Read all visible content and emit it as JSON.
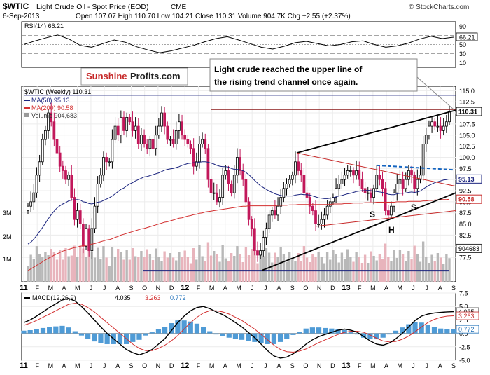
{
  "header": {
    "symbol": "$WTIC",
    "name": "Light Crude Oil - Spot Price (EOD)",
    "exchange": "CME",
    "date": "6-Sep-2013",
    "ohlc": "Open 107.07  High 110.70  Low 104.21  Close 110.31  Volume 904.7K  Chg +2.55 (+2.37%)",
    "watermark": "© StockCharts.com"
  },
  "brand": {
    "sunshine": "Sunshine",
    "profits": "Profits.com"
  },
  "annotation": "Light crude reached the upper line of the rising trend channel once again.",
  "pattern_labels": {
    "left_shoulder": "S",
    "head": "H",
    "right_shoulder": "S"
  },
  "chart_data": [
    {
      "type": "line",
      "title": "RSI(14) 66.21",
      "ylim": [
        0,
        100
      ],
      "y_ticks": [
        "90",
        "66.21",
        "50",
        "30",
        "10"
      ],
      "levels": [
        70,
        50,
        30
      ],
      "last_value_label": "66.21",
      "values": [
        50,
        58,
        65,
        71,
        62,
        48,
        44,
        52,
        60,
        55,
        45,
        38,
        32,
        36,
        42,
        48,
        56,
        63,
        67,
        60,
        52,
        44,
        40,
        46,
        54,
        57,
        52,
        47,
        50,
        56,
        58,
        50,
        44,
        47,
        53,
        62,
        68,
        63,
        66.21
      ]
    },
    {
      "type": "candlestick",
      "title": "$WTIC (Weekly) 110.31",
      "ylim": [
        72,
        116
      ],
      "y_ticks": [
        "115.0",
        "112.5",
        "110.0",
        "107.5",
        "105.0",
        "102.5",
        "100.0",
        "97.5",
        "95.0",
        "92.5",
        "90.0",
        "87.5",
        "85.0",
        "82.5",
        "80.0",
        "77.5"
      ],
      "x_labels": [
        "11",
        "F",
        "M",
        "A",
        "M",
        "J",
        "J",
        "A",
        "S",
        "O",
        "N",
        "D",
        "12",
        "F",
        "M",
        "A",
        "M",
        "J",
        "J",
        "A",
        "S",
        "O",
        "N",
        "D",
        "13",
        "F",
        "M",
        "A",
        "M",
        "J",
        "J",
        "A",
        "S"
      ],
      "legend": {
        "ma50": "MA(50) 95.13",
        "ma200": "MA(200) 90.58",
        "volume": "Volume 904,683"
      },
      "price_tags": {
        "close": "110.31",
        "ma50": "95.13",
        "ma200": "90.58",
        "volume": "904683"
      },
      "volume_axis": [
        "3M",
        "2M",
        "1M"
      ],
      "closes": [
        89,
        90,
        92,
        96,
        99,
        104,
        106,
        110,
        108,
        104,
        101,
        98,
        97,
        95,
        96,
        91,
        86,
        88,
        85,
        80,
        84,
        79,
        84,
        89,
        94,
        96,
        100,
        99,
        99,
        104,
        107,
        105,
        109,
        106,
        109,
        108,
        106,
        107,
        103,
        105,
        103,
        102,
        104,
        102,
        105,
        107,
        110,
        107,
        104,
        104,
        103,
        106,
        108,
        105,
        104,
        103,
        102,
        98,
        99,
        103,
        104,
        102,
        95,
        92,
        92,
        90,
        91,
        96,
        97,
        94,
        92,
        96,
        100,
        97,
        95,
        90,
        86,
        84,
        79,
        78,
        79,
        82,
        84,
        87,
        88,
        87,
        89,
        91,
        93,
        94,
        95,
        96,
        99,
        97,
        96,
        92,
        91,
        89,
        88,
        85,
        85,
        86,
        87,
        89,
        90,
        91,
        93,
        94,
        95,
        96,
        97,
        97,
        96,
        97,
        95,
        93,
        92,
        92,
        91,
        93,
        96,
        95,
        93,
        88,
        87,
        89,
        92,
        94,
        95,
        93,
        95,
        97,
        96,
        93,
        95,
        96,
        103,
        105,
        107,
        108,
        107,
        107,
        106,
        107,
        108,
        110.31
      ],
      "ma50": [
        80.5,
        80.9,
        81.6,
        82.4,
        83.3,
        84.2,
        85.2,
        86.2,
        87.1,
        87.9,
        88.6,
        89.1,
        89.5,
        89.8,
        90.2,
        90.4,
        90.4,
        90.5,
        90.4,
        90.0,
        89.9,
        89.6,
        89.5,
        89.7,
        89.9,
        90.0,
        90.3,
        90.6,
        90.9,
        91.3,
        91.8,
        92.3,
        92.8,
        93.1,
        93.6,
        94.0,
        94.3,
        94.7,
        95.0,
        95.3,
        95.6,
        95.7,
        95.9,
        96.1,
        96.3,
        96.5,
        96.8,
        97.1,
        97.3,
        97.4,
        97.5,
        97.7,
        97.9,
        98.2,
        98.4,
        98.6,
        98.7,
        98.8,
        98.8,
        98.9,
        99.0,
        99.0,
        98.9,
        98.7,
        98.5,
        98.2,
        98.0,
        97.9,
        97.9,
        97.8,
        97.5,
        97.3,
        97.3,
        97.2,
        97.0,
        96.6,
        96.1,
        95.5,
        94.8,
        94.2,
        93.6,
        93.2,
        92.8,
        92.4,
        92.1,
        91.8,
        91.6,
        91.4,
        91.3,
        91.3,
        91.3,
        91.3,
        91.5,
        91.6,
        91.7,
        91.6,
        91.6,
        91.5,
        91.3,
        91.1,
        90.9,
        90.8,
        90.7,
        90.7,
        90.8,
        90.9,
        91.1,
        91.3,
        91.4,
        91.6,
        91.8,
        91.9,
        92.1,
        92.3,
        92.4,
        92.5,
        92.5,
        92.6,
        92.5,
        92.4,
        92.3,
        92.2,
        92.1,
        91.9,
        91.7,
        91.6,
        91.6,
        91.8,
        91.9,
        91.9,
        92.0,
        92.1,
        92.2,
        92.1,
        92.2,
        92.4,
        92.9,
        93.3,
        93.7,
        94.0,
        94.3,
        94.5,
        94.7,
        94.9,
        95.0,
        95.13
      ],
      "ma200": [
        74.5,
        74.9,
        75.3,
        75.7,
        76.1,
        76.5,
        76.9,
        77.3,
        77.6,
        78.0,
        78.3,
        78.6,
        78.9,
        79.1,
        79.3,
        79.5,
        79.7,
        79.8,
        80.0,
        80.1,
        80.2,
        80.3,
        80.5,
        80.6,
        80.8,
        81.0,
        81.2,
        81.4,
        81.5,
        81.7,
        82.0,
        82.2,
        82.5,
        82.7,
        82.9,
        83.1,
        83.3,
        83.5,
        83.7,
        83.9,
        84.0,
        84.2,
        84.4,
        84.6,
        84.8,
        85.0,
        85.2,
        85.4,
        85.5,
        85.7,
        85.9,
        86.1,
        86.3,
        86.4,
        86.6,
        86.8,
        86.9,
        87.1,
        87.2,
        87.4,
        87.5,
        87.7,
        87.8,
        87.9,
        88.0,
        88.1,
        88.2,
        88.3,
        88.4,
        88.5,
        88.6,
        88.7,
        88.8,
        88.9,
        89.0,
        89.0,
        89.1,
        89.1,
        89.1,
        89.1,
        89.1,
        89.1,
        89.1,
        89.1,
        89.1,
        89.1,
        89.2,
        89.2,
        89.2,
        89.2,
        89.3,
        89.3,
        89.3,
        89.4,
        89.4,
        89.4,
        89.4,
        89.4,
        89.4,
        89.4,
        89.4,
        89.4,
        89.4,
        89.4,
        89.4,
        89.5,
        89.5,
        89.5,
        89.5,
        89.6,
        89.6,
        89.6,
        89.7,
        89.7,
        89.7,
        89.7,
        89.8,
        89.8,
        89.8,
        89.8,
        89.9,
        89.9,
        89.9,
        89.9,
        89.9,
        89.9,
        89.9,
        90.0,
        90.0,
        90.0,
        90.0,
        90.1,
        90.1,
        90.1,
        90.1,
        90.1,
        90.2,
        90.2,
        90.3,
        90.3,
        90.4,
        90.4,
        90.5,
        90.5,
        90.5,
        90.58
      ],
      "resistance_levels": [
        114,
        110.8
      ],
      "support_level": 74.5
    },
    {
      "type": "line",
      "title": "MACD(12,26,9) 4.035, 3.263, 0.772",
      "legend": {
        "macd": "MACD(12,26,9)",
        "macd_value": "4.035",
        "signal_value": "3.263",
        "hist_value": "0.772"
      },
      "ylim": [
        -5,
        7.5
      ],
      "y_ticks": [
        "7.5",
        "5.0",
        "2.5",
        "0.0",
        "-2.5",
        "-5.0"
      ],
      "price_tags": {
        "macd": "4.035",
        "signal": "3.263",
        "hist": "0.772"
      },
      "x_labels": [
        "11",
        "F",
        "M",
        "A",
        "M",
        "J",
        "J",
        "A",
        "S",
        "O",
        "N",
        "D",
        "12",
        "F",
        "M",
        "A",
        "M",
        "J",
        "J",
        "A",
        "S",
        "O",
        "N",
        "D",
        "13",
        "F",
        "M",
        "A",
        "M",
        "J",
        "J",
        "A",
        "S"
      ],
      "macd": [
        2.0,
        2.5,
        3.2,
        4.0,
        4.8,
        5.5,
        6.2,
        6.5,
        6.0,
        5.0,
        3.8,
        2.5,
        1.2,
        0.0,
        -1.0,
        -2.0,
        -3.0,
        -3.6,
        -4.0,
        -3.6,
        -3.0,
        -2.0,
        -1.0,
        0.5,
        2.0,
        3.2,
        4.2,
        4.8,
        5.0,
        4.6,
        4.0,
        3.5,
        2.8,
        2.0,
        1.2,
        0.2,
        -0.8,
        -2.0,
        -3.2,
        -4.2,
        -4.6,
        -4.4,
        -3.8,
        -3.0,
        -2.0,
        -1.2,
        -0.6,
        -0.2,
        0.2,
        0.6,
        0.8,
        0.6,
        0.2,
        -0.6,
        -1.4,
        -2.0,
        -2.2,
        -1.8,
        -1.0,
        0.0,
        1.2,
        2.4,
        3.2,
        3.6,
        3.8,
        3.9,
        4.0,
        4.035
      ],
      "signal": [
        1.5,
        1.9,
        2.4,
        3.0,
        3.6,
        4.2,
        4.8,
        5.4,
        5.6,
        5.4,
        4.8,
        4.0,
        3.0,
        2.0,
        1.0,
        0.0,
        -1.0,
        -2.0,
        -2.8,
        -3.2,
        -3.2,
        -2.8,
        -2.2,
        -1.4,
        -0.4,
        0.8,
        2.0,
        3.0,
        3.8,
        4.2,
        4.2,
        4.0,
        3.6,
        3.0,
        2.4,
        1.6,
        0.8,
        -0.2,
        -1.2,
        -2.2,
        -3.0,
        -3.4,
        -3.5,
        -3.3,
        -2.9,
        -2.3,
        -1.7,
        -1.2,
        -0.7,
        -0.2,
        0.2,
        0.4,
        0.4,
        0.2,
        -0.3,
        -0.9,
        -1.4,
        -1.6,
        -1.5,
        -1.1,
        -0.5,
        0.3,
        1.2,
        2.0,
        2.6,
        3.0,
        3.2,
        3.263
      ]
    }
  ]
}
